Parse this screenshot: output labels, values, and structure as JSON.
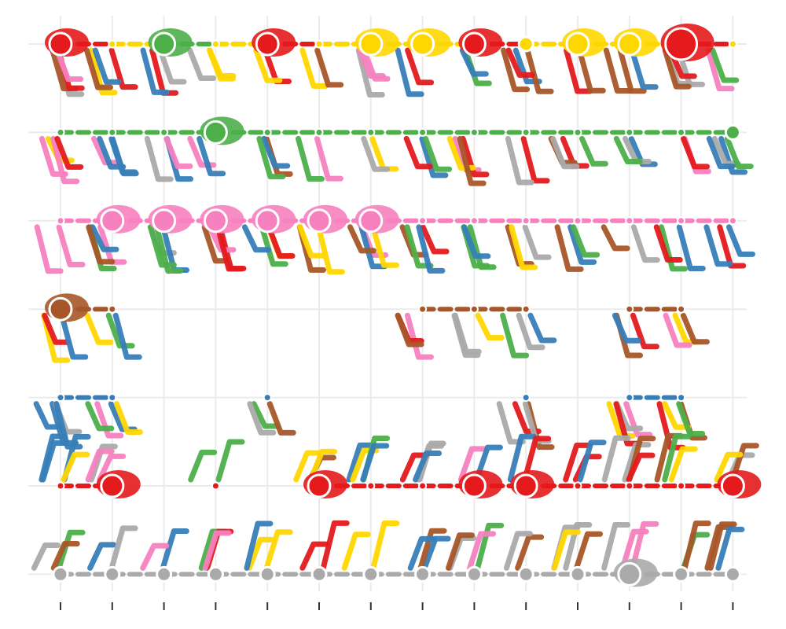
{
  "chart_data": {
    "type": "scatter",
    "title": "",
    "xlabel": "",
    "ylabel": "",
    "x": [
      0,
      1,
      2,
      3,
      4,
      5,
      6,
      7,
      8,
      9,
      10,
      11,
      12,
      13
    ],
    "rows": [
      0,
      1,
      2,
      3,
      4,
      5,
      6
    ],
    "grid": true,
    "tick_labels_shown": false,
    "colors": {
      "red": "#e41a1c",
      "blue": "#377eb8",
      "green": "#4daf4a",
      "brown": "#a65628",
      "pink": "#f781bf",
      "gray": "#aaaaaa",
      "yellow": "#ffd700",
      "grid": "#ebebeb",
      "tick": "#333333"
    },
    "series": [
      {
        "row": 0,
        "points": [
          {
            "x": 0,
            "color": "red",
            "size": 3
          },
          {
            "x": 1,
            "color": "yellow",
            "size": 1
          },
          {
            "x": 2,
            "color": "green",
            "size": 3
          },
          {
            "x": 3,
            "color": "yellow",
            "size": 1
          },
          {
            "x": 4,
            "color": "red",
            "size": 3
          },
          {
            "x": 5,
            "color": "yellow",
            "size": 1
          },
          {
            "x": 6,
            "color": "yellow",
            "size": 3
          },
          {
            "x": 7,
            "color": "yellow",
            "size": 3
          },
          {
            "x": 8,
            "color": "red",
            "size": 3
          },
          {
            "x": 9,
            "color": "yellow",
            "size": 2
          },
          {
            "x": 10,
            "color": "yellow",
            "size": 3
          },
          {
            "x": 11,
            "color": "yellow",
            "size": 3
          },
          {
            "x": 12,
            "color": "red",
            "size": 4
          },
          {
            "x": 13,
            "color": "yellow",
            "size": 1
          }
        ]
      },
      {
        "row": 1,
        "points": [
          {
            "x": 0,
            "color": "green",
            "size": 1
          },
          {
            "x": 1,
            "color": "green",
            "size": 1
          },
          {
            "x": 2,
            "color": "green",
            "size": 1
          },
          {
            "x": 3,
            "color": "green",
            "size": 3
          },
          {
            "x": 4,
            "color": "green",
            "size": 1
          },
          {
            "x": 5,
            "color": "green",
            "size": 1
          },
          {
            "x": 6,
            "color": "green",
            "size": 1
          },
          {
            "x": 7,
            "color": "green",
            "size": 1
          },
          {
            "x": 8,
            "color": "green",
            "size": 1
          },
          {
            "x": 9,
            "color": "green",
            "size": 1
          },
          {
            "x": 10,
            "color": "green",
            "size": 1
          },
          {
            "x": 11,
            "color": "green",
            "size": 1
          },
          {
            "x": 12,
            "color": "green",
            "size": 1
          },
          {
            "x": 13,
            "color": "green",
            "size": 2
          }
        ]
      },
      {
        "row": 2,
        "points": [
          {
            "x": 0,
            "color": "pink",
            "size": 1
          },
          {
            "x": 1,
            "color": "pink",
            "size": 3
          },
          {
            "x": 2,
            "color": "pink",
            "size": 3
          },
          {
            "x": 3,
            "color": "pink",
            "size": 3
          },
          {
            "x": 4,
            "color": "pink",
            "size": 3
          },
          {
            "x": 5,
            "color": "pink",
            "size": 3
          },
          {
            "x": 6,
            "color": "pink",
            "size": 3
          },
          {
            "x": 7,
            "color": "pink",
            "size": 1
          },
          {
            "x": 8,
            "color": "pink",
            "size": 1
          },
          {
            "x": 9,
            "color": "pink",
            "size": 1
          },
          {
            "x": 10,
            "color": "pink",
            "size": 1
          },
          {
            "x": 11,
            "color": "pink",
            "size": 1
          },
          {
            "x": 12,
            "color": "pink",
            "size": 1
          },
          {
            "x": 13,
            "color": "pink",
            "size": 1
          }
        ]
      },
      {
        "row": 3,
        "points": [
          {
            "x": 0,
            "color": "brown",
            "size": 3
          },
          {
            "x": 1,
            "color": "brown",
            "size": 1
          },
          {
            "x": 7,
            "color": "brown",
            "size": 1
          },
          {
            "x": 8,
            "color": "brown",
            "size": 1
          },
          {
            "x": 9,
            "color": "brown",
            "size": 1
          },
          {
            "x": 11,
            "color": "brown",
            "size": 1
          },
          {
            "x": 12,
            "color": "brown",
            "size": 1
          }
        ]
      },
      {
        "row": 4,
        "points": [
          {
            "x": 0,
            "color": "blue",
            "size": 1
          },
          {
            "x": 1,
            "color": "blue",
            "size": 1
          },
          {
            "x": 4,
            "color": "blue",
            "size": 1
          },
          {
            "x": 9,
            "color": "blue",
            "size": 1
          },
          {
            "x": 11,
            "color": "blue",
            "size": 1
          },
          {
            "x": 12,
            "color": "blue",
            "size": 1
          }
        ]
      },
      {
        "row": 5,
        "points": [
          {
            "x": 0,
            "color": "red",
            "size": 1
          },
          {
            "x": 1,
            "color": "red",
            "size": 3
          },
          {
            "x": 3,
            "color": "red",
            "size": 1
          },
          {
            "x": 5,
            "color": "red",
            "size": 3
          },
          {
            "x": 6,
            "color": "red",
            "size": 1
          },
          {
            "x": 7,
            "color": "red",
            "size": 1
          },
          {
            "x": 8,
            "color": "red",
            "size": 3
          },
          {
            "x": 9,
            "color": "red",
            "size": 3
          },
          {
            "x": 10,
            "color": "red",
            "size": 1
          },
          {
            "x": 11,
            "color": "red",
            "size": 1
          },
          {
            "x": 12,
            "color": "red",
            "size": 1
          },
          {
            "x": 13,
            "color": "red",
            "size": 3
          }
        ]
      },
      {
        "row": 6,
        "points": [
          {
            "x": 0,
            "color": "gray",
            "size": 2
          },
          {
            "x": 1,
            "color": "gray",
            "size": 2
          },
          {
            "x": 2,
            "color": "gray",
            "size": 2
          },
          {
            "x": 3,
            "color": "gray",
            "size": 2
          },
          {
            "x": 4,
            "color": "gray",
            "size": 2
          },
          {
            "x": 5,
            "color": "gray",
            "size": 2
          },
          {
            "x": 6,
            "color": "gray",
            "size": 2
          },
          {
            "x": 7,
            "color": "gray",
            "size": 2
          },
          {
            "x": 8,
            "color": "gray",
            "size": 2
          },
          {
            "x": 9,
            "color": "gray",
            "size": 2
          },
          {
            "x": 10,
            "color": "gray",
            "size": 2
          },
          {
            "x": 11,
            "color": "gray",
            "size": 3
          },
          {
            "x": 12,
            "color": "gray",
            "size": 2
          },
          {
            "x": 13,
            "color": "gray",
            "size": 2
          }
        ]
      }
    ]
  }
}
